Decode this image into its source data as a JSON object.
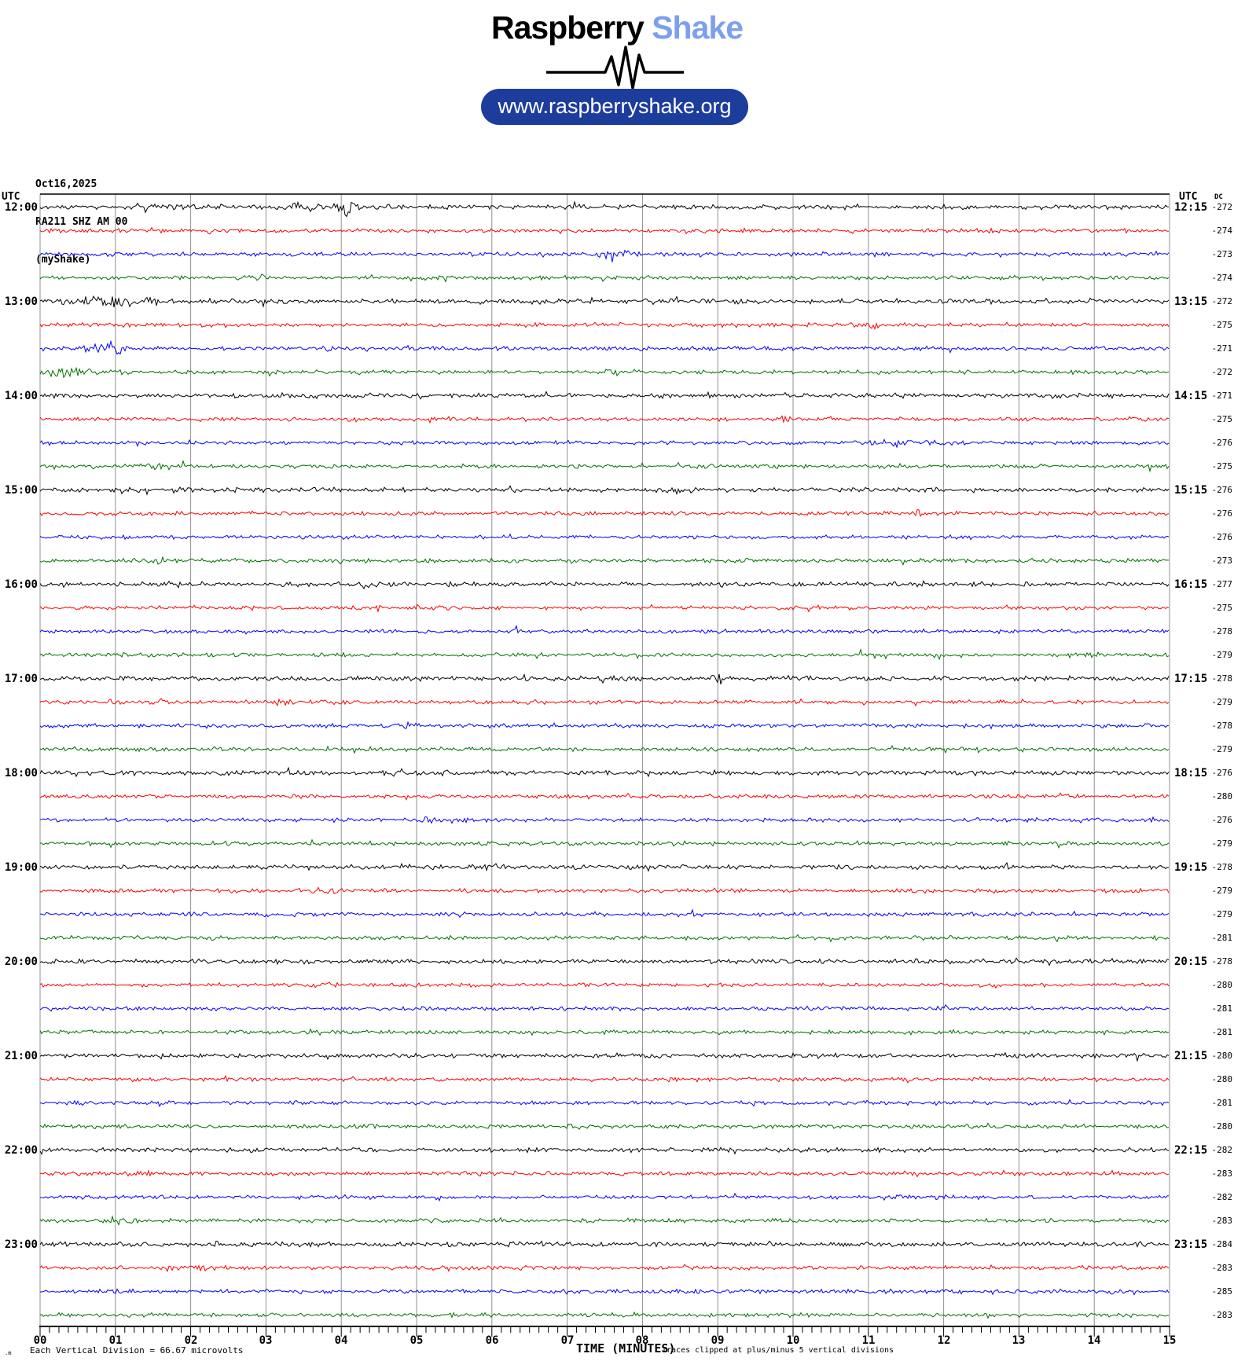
{
  "header": {
    "brand_primary": "Raspberry",
    "brand_secondary": "Shake",
    "brand_secondary_color": "#7d9ff0",
    "url_label": "www.raspberryshake.org",
    "pill_color": "#1d3d9c"
  },
  "station": {
    "date": "Oct16,2025",
    "id": "RA211 SHZ AM 00",
    "name": "(myShake)"
  },
  "axis": {
    "utc_left": "UTC",
    "utc_right": "UTC",
    "dc_header": "DC",
    "xlabel": "TIME (MINUTES)"
  },
  "footer": {
    "corner_marker": ".m",
    "scale_note": "Each Vertical Division =  66.67 microvolts",
    "clip_note": "Traces clipped at plus/minus 5 vertical divisions"
  },
  "chart_data": {
    "type": "line",
    "subtype": "helicorder-seismogram",
    "title": "RA211 SHZ AM 00 (myShake) Oct16,2025",
    "xlabel": "TIME (MINUTES)",
    "x_minutes_per_row": 15,
    "x_tick_labels": [
      "00",
      "01",
      "02",
      "03",
      "04",
      "05",
      "06",
      "07",
      "08",
      "09",
      "10",
      "11",
      "12",
      "13",
      "14",
      "15"
    ],
    "minor_ticks_per_minute": 8,
    "grid": "vertical-minute-lines",
    "grid_color": "#909090",
    "trace_colors": [
      "#000000",
      "#ff0000",
      "#0000ff",
      "#007000"
    ],
    "clip_divisions": 5,
    "microvolts_per_division": 66.67,
    "rows": [
      {
        "utc_left": "12:00",
        "utc_right": "12:15",
        "dc": -272,
        "events": [
          {
            "t": 1.5,
            "w": 0.45,
            "a": 1.0
          },
          {
            "t": 3.6,
            "w": 0.25,
            "a": 0.7
          },
          {
            "t": 4.08,
            "w": 0.1,
            "a": 3.2
          }
        ]
      },
      {
        "utc_left": "",
        "utc_right": "",
        "dc": -274,
        "events": []
      },
      {
        "utc_left": "",
        "utc_right": "",
        "dc": -273,
        "events": [
          {
            "t": 7.62,
            "w": 0.13,
            "a": 3.0
          }
        ]
      },
      {
        "utc_left": "",
        "utc_right": "",
        "dc": -274,
        "events": [
          {
            "t": 2.9,
            "w": 0.08,
            "a": 1.2
          }
        ]
      },
      {
        "utc_left": "13:00",
        "utc_right": "13:15",
        "dc": -272,
        "events": [
          {
            "t": 0.95,
            "w": 0.3,
            "a": 1.4
          },
          {
            "t": 1.3,
            "w": 0.15,
            "a": 1.0
          }
        ]
      },
      {
        "utc_left": "",
        "utc_right": "",
        "dc": -275,
        "events": [
          {
            "t": 11.05,
            "w": 0.05,
            "a": 2.0
          }
        ]
      },
      {
        "utc_left": "",
        "utc_right": "",
        "dc": -271,
        "events": [
          {
            "t": 0.85,
            "w": 0.22,
            "a": 2.6
          },
          {
            "t": 3.85,
            "w": 0.12,
            "a": 1.0
          }
        ]
      },
      {
        "utc_left": "",
        "utc_right": "",
        "dc": -272,
        "events": [
          {
            "t": 0.3,
            "w": 0.22,
            "a": 3.0
          },
          {
            "t": 7.6,
            "w": 0.07,
            "a": 1.6
          }
        ]
      },
      {
        "utc_left": "14:00",
        "utc_right": "14:15",
        "dc": -271,
        "events": []
      },
      {
        "utc_left": "",
        "utc_right": "",
        "dc": -275,
        "events": [
          {
            "t": 9.9,
            "w": 0.05,
            "a": 2.2
          }
        ]
      },
      {
        "utc_left": "",
        "utc_right": "",
        "dc": -276,
        "events": [
          {
            "t": 11.4,
            "w": 0.35,
            "a": 0.9
          }
        ]
      },
      {
        "utc_left": "",
        "utc_right": "",
        "dc": -275,
        "events": [
          {
            "t": 1.62,
            "w": 0.17,
            "a": 1.8
          }
        ]
      },
      {
        "utc_left": "15:00",
        "utc_right": "15:15",
        "dc": -276,
        "events": []
      },
      {
        "utc_left": "",
        "utc_right": "",
        "dc": -276,
        "events": [
          {
            "t": 11.7,
            "w": 0.06,
            "a": 1.5
          }
        ]
      },
      {
        "utc_left": "",
        "utc_right": "",
        "dc": -276,
        "events": []
      },
      {
        "utc_left": "",
        "utc_right": "",
        "dc": -273,
        "events": [
          {
            "t": 1.55,
            "w": 0.2,
            "a": 1.0
          },
          {
            "t": 2.6,
            "w": 0.1,
            "a": 0.8
          }
        ]
      },
      {
        "utc_left": "16:00",
        "utc_right": "16:15",
        "dc": -277,
        "events": [
          {
            "t": 4.35,
            "w": 0.08,
            "a": 1.3
          }
        ]
      },
      {
        "utc_left": "",
        "utc_right": "",
        "dc": -275,
        "events": [
          {
            "t": 4.5,
            "w": 0.06,
            "a": 1.0
          }
        ]
      },
      {
        "utc_left": "",
        "utc_right": "",
        "dc": -278,
        "events": [
          {
            "t": 6.35,
            "w": 0.05,
            "a": 1.5
          }
        ]
      },
      {
        "utc_left": "",
        "utc_right": "",
        "dc": -279,
        "events": [
          {
            "t": 11.0,
            "w": 0.1,
            "a": 0.8
          }
        ]
      },
      {
        "utc_left": "17:00",
        "utc_right": "17:15",
        "dc": -278,
        "events": [
          {
            "t": 9.0,
            "w": 0.05,
            "a": 1.8
          }
        ]
      },
      {
        "utc_left": "",
        "utc_right": "",
        "dc": -279,
        "events": [
          {
            "t": 3.2,
            "w": 0.08,
            "a": 1.0
          }
        ]
      },
      {
        "utc_left": "",
        "utc_right": "",
        "dc": -278,
        "events": [
          {
            "t": 4.95,
            "w": 0.1,
            "a": 1.0
          }
        ]
      },
      {
        "utc_left": "",
        "utc_right": "",
        "dc": -279,
        "events": []
      },
      {
        "utc_left": "18:00",
        "utc_right": "18:15",
        "dc": -276,
        "events": [
          {
            "t": 4.75,
            "w": 0.15,
            "a": 0.8
          }
        ]
      },
      {
        "utc_left": "",
        "utc_right": "",
        "dc": -280,
        "events": []
      },
      {
        "utc_left": "",
        "utc_right": "",
        "dc": -276,
        "events": [
          {
            "t": 5.3,
            "w": 0.2,
            "a": 0.9
          }
        ]
      },
      {
        "utc_left": "",
        "utc_right": "",
        "dc": -279,
        "events": []
      },
      {
        "utc_left": "19:00",
        "utc_right": "19:15",
        "dc": -278,
        "events": [
          {
            "t": 6.05,
            "w": 0.1,
            "a": 0.9
          }
        ]
      },
      {
        "utc_left": "",
        "utc_right": "",
        "dc": -279,
        "events": [
          {
            "t": 3.75,
            "w": 0.12,
            "a": 0.8
          }
        ]
      },
      {
        "utc_left": "",
        "utc_right": "",
        "dc": -279,
        "events": [
          {
            "t": 5.5,
            "w": 0.15,
            "a": 0.6
          }
        ]
      },
      {
        "utc_left": "",
        "utc_right": "",
        "dc": -281,
        "events": [
          {
            "t": 1.25,
            "w": 0.12,
            "a": 0.8
          }
        ]
      },
      {
        "utc_left": "20:00",
        "utc_right": "20:15",
        "dc": -278,
        "events": []
      },
      {
        "utc_left": "",
        "utc_right": "",
        "dc": -280,
        "events": [
          {
            "t": 3.8,
            "w": 0.1,
            "a": 0.7
          }
        ]
      },
      {
        "utc_left": "",
        "utc_right": "",
        "dc": -281,
        "events": []
      },
      {
        "utc_left": "",
        "utc_right": "",
        "dc": -281,
        "events": [
          {
            "t": 3.9,
            "w": 0.15,
            "a": 0.6
          }
        ]
      },
      {
        "utc_left": "21:00",
        "utc_right": "21:15",
        "dc": -280,
        "events": []
      },
      {
        "utc_left": "",
        "utc_right": "",
        "dc": -280,
        "events": []
      },
      {
        "utc_left": "",
        "utc_right": "",
        "dc": -281,
        "events": []
      },
      {
        "utc_left": "",
        "utc_right": "",
        "dc": -280,
        "events": [
          {
            "t": 4.3,
            "w": 0.12,
            "a": 0.7
          }
        ]
      },
      {
        "utc_left": "22:00",
        "utc_right": "22:15",
        "dc": -282,
        "events": []
      },
      {
        "utc_left": "",
        "utc_right": "",
        "dc": -283,
        "events": [
          {
            "t": 1.15,
            "w": 0.2,
            "a": 1.0
          }
        ]
      },
      {
        "utc_left": "",
        "utc_right": "",
        "dc": -282,
        "events": [
          {
            "t": 5.3,
            "w": 0.03,
            "a": 2.4
          }
        ]
      },
      {
        "utc_left": "",
        "utc_right": "",
        "dc": -283,
        "events": [
          {
            "t": 1.05,
            "w": 0.15,
            "a": 1.1
          }
        ]
      },
      {
        "utc_left": "23:00",
        "utc_right": "23:15",
        "dc": -284,
        "events": []
      },
      {
        "utc_left": "",
        "utc_right": "",
        "dc": -283,
        "events": [
          {
            "t": 2.0,
            "w": 0.3,
            "a": 0.6
          }
        ]
      },
      {
        "utc_left": "",
        "utc_right": "",
        "dc": -285,
        "events": []
      },
      {
        "utc_left": "",
        "utc_right": "",
        "dc": -283,
        "events": []
      }
    ]
  }
}
